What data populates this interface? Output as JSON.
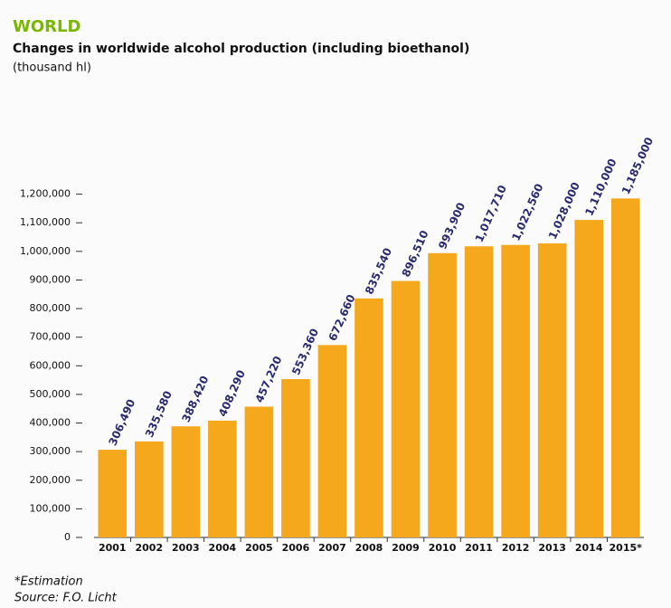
{
  "chart_data": {
    "type": "bar",
    "region": "WORLD",
    "title": "Changes in worldwide alcohol production (including bioethanol)",
    "subtitle": "(thousand hl)",
    "categories": [
      "2001",
      "2002",
      "2003",
      "2004",
      "2005",
      "2006",
      "2007",
      "2008",
      "2009",
      "2010",
      "2011",
      "2012",
      "2013",
      "2014",
      "2015*"
    ],
    "values": [
      306490,
      335580,
      388420,
      408290,
      457220,
      553360,
      672660,
      835540,
      896510,
      993900,
      1017710,
      1022560,
      1028000,
      1110000,
      1185000
    ],
    "value_labels": [
      "306,490",
      "335,580",
      "388,420",
      "408,290",
      "457,220",
      "553,360",
      "672,660",
      "835,540",
      "896,510",
      "993,900",
      "1,017,710",
      "1,022,560",
      "1,028,000",
      "1,110,000",
      "1,185,000"
    ],
    "color": "#f5a81c",
    "ylim": [
      0,
      1300000
    ],
    "yticks": [
      0,
      {
        "value": 100000,
        "label": "100,000"
      },
      {
        "value": 200000,
        "label": "200,000"
      },
      {
        "value": 300000,
        "label": "300,000"
      },
      {
        "value": 400000,
        "label": "400,000"
      },
      {
        "value": 500000,
        "label": "500,000"
      },
      {
        "value": 600000,
        "label": "600,000"
      },
      {
        "value": 700000,
        "label": "700,000"
      },
      {
        "value": 800000,
        "label": "800,000"
      },
      {
        "value": 900000,
        "label": "900,000"
      },
      {
        "value": 1000000,
        "label": "1,000,000"
      },
      {
        "value": 1100000,
        "label": "1,100,000"
      },
      {
        "value": 1200000,
        "label": "1,200,000"
      }
    ],
    "grid": false,
    "footnote": "*Estimation",
    "source": "Source: F.O. Licht"
  }
}
